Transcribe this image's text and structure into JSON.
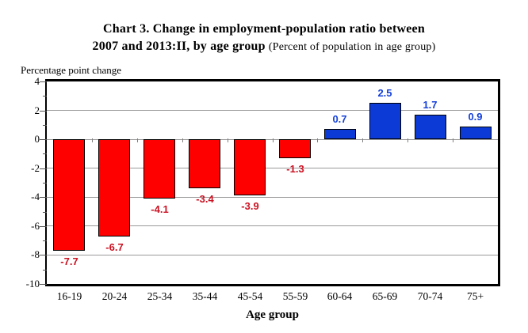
{
  "title": {
    "line1": "Chart 3. Change in employment-population ratio between",
    "line2_bold": "2007 and 2013:II, by age group",
    "line2_paren": "(Percent of population in age group)"
  },
  "chart_data": {
    "type": "bar",
    "categories": [
      "16-19",
      "20-24",
      "25-34",
      "35-44",
      "45-54",
      "55-59",
      "60-64",
      "65-69",
      "70-74",
      "75+"
    ],
    "values": [
      -7.7,
      -6.7,
      -4.1,
      -3.4,
      -3.9,
      -1.3,
      0.7,
      2.5,
      1.7,
      0.9
    ],
    "title": "Chart 3. Change in employment-population ratio between 2007 and 2013:II, by age group (Percent of population in age group)",
    "xlabel": "Age group",
    "ylabel": "Percentage point change",
    "ylim": [
      -10,
      4
    ],
    "ytick_step": 2,
    "grid": true,
    "legend": "none",
    "colors": {
      "negative_bar": "#FF0000",
      "positive_bar": "#0C3AD6",
      "negative_label": "#CC1122",
      "positive_label": "#1540D9",
      "bar_border": "#000000",
      "gridline": "#999999",
      "axis_tick": "#555555",
      "text": "#000000"
    }
  }
}
